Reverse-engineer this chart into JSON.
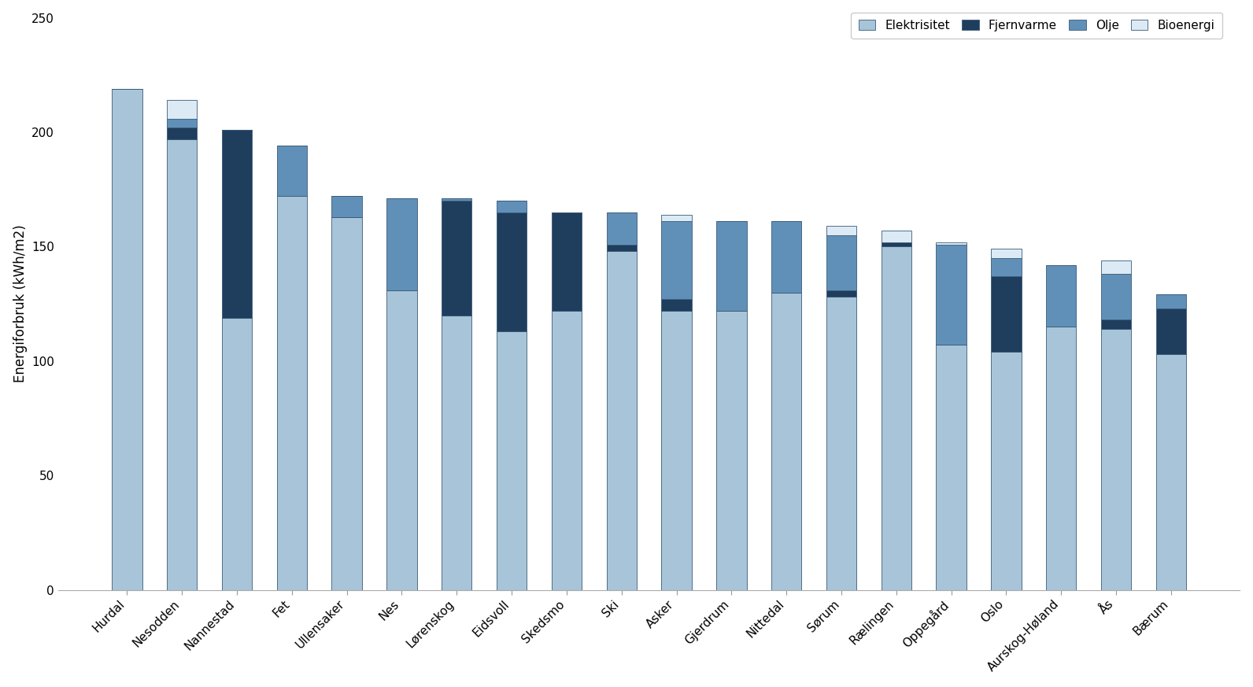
{
  "categories": [
    "Hurdal",
    "Nesodden",
    "Nannestad",
    "Fet",
    "Ullensaker",
    "Nes",
    "Lørenskog",
    "Eidsvoll",
    "Skedsmo",
    "Ski",
    "Asker",
    "Gjerdrum",
    "Nittedal",
    "Sørum",
    "Rælingen",
    "Oppegård",
    "Oslo",
    "Aurskog-Høland",
    "Ås",
    "Bærum"
  ],
  "elektrisitet": [
    219,
    197,
    119,
    172,
    163,
    131,
    120,
    113,
    122,
    148,
    122,
    122,
    130,
    128,
    150,
    107,
    104,
    115,
    114,
    103
  ],
  "fjernvarme": [
    0,
    5,
    82,
    0,
    0,
    0,
    50,
    52,
    43,
    3,
    5,
    0,
    0,
    3,
    2,
    0,
    33,
    0,
    4,
    20
  ],
  "olje": [
    0,
    4,
    0,
    22,
    9,
    40,
    1,
    5,
    0,
    14,
    34,
    39,
    31,
    24,
    0,
    44,
    8,
    27,
    20,
    6
  ],
  "bioenergi": [
    0,
    8,
    0,
    0,
    0,
    0,
    0,
    0,
    0,
    0,
    3,
    0,
    0,
    4,
    5,
    1,
    4,
    0,
    6,
    0
  ],
  "color_elektrisitet": "#a8c4d8",
  "color_fjernvarme": "#1f3d5c",
  "color_olje": "#6090b8",
  "color_bioenergi": "#dbeaf4",
  "bar_edgecolor": "#3a5a78",
  "bar_linewidth": 0.6,
  "ylabel": "Energiforbruk (kWh/m2)",
  "ylim": [
    0,
    250
  ],
  "yticks": [
    0,
    50,
    100,
    150,
    200,
    250
  ],
  "legend_labels": [
    "Elektrisitet",
    "Fjernvarme",
    "Olje",
    "Bioenergi"
  ],
  "figsize": [
    15.92,
    8.73
  ],
  "dpi": 100
}
